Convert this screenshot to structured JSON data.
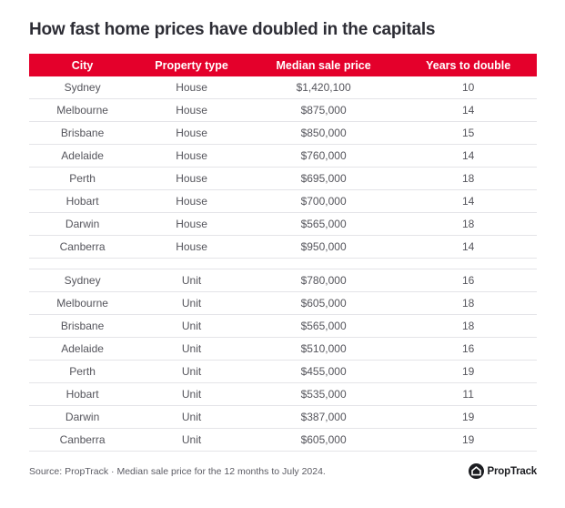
{
  "title": "How fast home prices have doubled in the capitals",
  "colors": {
    "header_bg": "#e4002b",
    "header_text": "#ffffff",
    "title_text": "#2d2d35",
    "body_text": "#55555c",
    "divider": "#e4e4e8",
    "footer_text": "#5c5c64",
    "logo_color": "#1c1d21"
  },
  "chart_data": {
    "type": "table",
    "title": "How fast home prices have doubled in the capitals",
    "columns": [
      "City",
      "Property type",
      "Median sale price",
      "Years to double"
    ],
    "sections": [
      {
        "name": "House",
        "rows": [
          [
            "Sydney",
            "House",
            "$1,420,100",
            "10"
          ],
          [
            "Melbourne",
            "House",
            "$875,000",
            "14"
          ],
          [
            "Brisbane",
            "House",
            "$850,000",
            "15"
          ],
          [
            "Adelaide",
            "House",
            "$760,000",
            "14"
          ],
          [
            "Perth",
            "House",
            "$695,000",
            "18"
          ],
          [
            "Hobart",
            "House",
            "$700,000",
            "14"
          ],
          [
            "Darwin",
            "House",
            "$565,000",
            "18"
          ],
          [
            "Canberra",
            "House",
            "$950,000",
            "14"
          ]
        ]
      },
      {
        "name": "Unit",
        "rows": [
          [
            "Sydney",
            "Unit",
            "$780,000",
            "16"
          ],
          [
            "Melbourne",
            "Unit",
            "$605,000",
            "18"
          ],
          [
            "Brisbane",
            "Unit",
            "$565,000",
            "18"
          ],
          [
            "Adelaide",
            "Unit",
            "$510,000",
            "16"
          ],
          [
            "Perth",
            "Unit",
            "$455,000",
            "19"
          ],
          [
            "Hobart",
            "Unit",
            "$535,000",
            "11"
          ],
          [
            "Darwin",
            "Unit",
            "$387,000",
            "19"
          ],
          [
            "Canberra",
            "Unit",
            "$605,000",
            "19"
          ]
        ]
      }
    ],
    "source": "Source: PropTrack · Median sale price for the 12 months to July 2024."
  },
  "footer": {
    "source_text": "Source: PropTrack · Median sale price for the 12 months to July 2024.",
    "logo_text": "PropTrack",
    "logo_icon": "proptrack-house-icon"
  }
}
